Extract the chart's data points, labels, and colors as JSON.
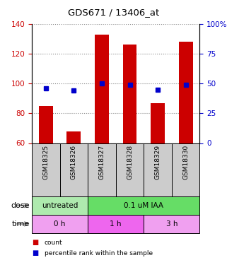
{
  "title": "GDS671 / 13406_at",
  "samples": [
    "GSM18325",
    "GSM18326",
    "GSM18327",
    "GSM18328",
    "GSM18329",
    "GSM18330"
  ],
  "bar_values": [
    85,
    68,
    133,
    126,
    87,
    128
  ],
  "dot_values": [
    46,
    44,
    50,
    49,
    45,
    49
  ],
  "bar_color": "#cc0000",
  "dot_color": "#0000cc",
  "ylim_left": [
    60,
    140
  ],
  "ylim_right": [
    0,
    100
  ],
  "yticks_left": [
    60,
    80,
    100,
    120,
    140
  ],
  "yticks_right": [
    0,
    25,
    50,
    75,
    100
  ],
  "yticklabels_right": [
    "0",
    "25",
    "50",
    "75",
    "100%"
  ],
  "dose_labels": [
    {
      "text": "untreated",
      "span": [
        0,
        2
      ],
      "color": "#aeeaae"
    },
    {
      "text": "0.1 uM IAA",
      "span": [
        2,
        6
      ],
      "color": "#66dd66"
    }
  ],
  "time_labels": [
    {
      "text": "0 h",
      "span": [
        0,
        2
      ],
      "color": "#f0a0f0"
    },
    {
      "text": "1 h",
      "span": [
        2,
        4
      ],
      "color": "#ee66ee"
    },
    {
      "text": "3 h",
      "span": [
        4,
        6
      ],
      "color": "#f0a0f0"
    }
  ],
  "legend_items": [
    {
      "label": "count",
      "color": "#cc0000"
    },
    {
      "label": "percentile rank within the sample",
      "color": "#0000cc"
    }
  ],
  "dose_label": "dose",
  "time_label": "time",
  "left_axis_color": "#cc0000",
  "right_axis_color": "#0000cc",
  "grid_color": "#888888",
  "bar_bottom": 60,
  "sample_box_color": "#cccccc"
}
